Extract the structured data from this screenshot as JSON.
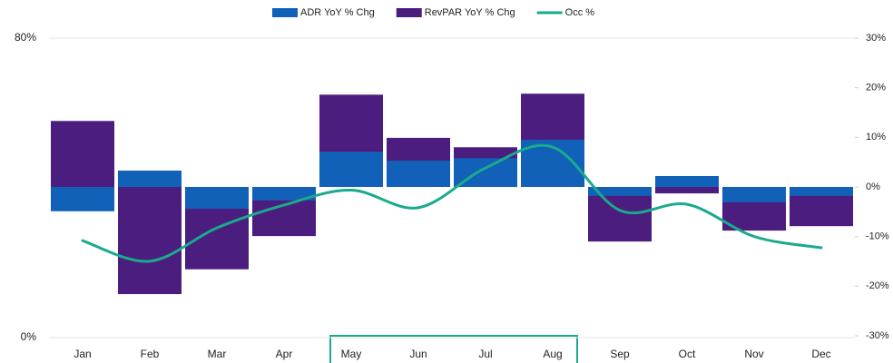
{
  "chart_data": {
    "type": "combo",
    "categories": [
      "Jan",
      "Feb",
      "Mar",
      "Apr",
      "May",
      "Jun",
      "Jul",
      "Aug",
      "Sep",
      "Oct",
      "Nov",
      "Dec"
    ],
    "series": [
      {
        "name": "ADR YoY % Chg",
        "type": "bar",
        "axis": "y2",
        "color": "#1261b8",
        "values": [
          -4.9,
          3.3,
          -4.4,
          -2.7,
          7.1,
          5.3,
          5.8,
          9.5,
          -1.8,
          2.2,
          -3.1,
          -1.8
        ]
      },
      {
        "name": "RevPAR YoY % Chg",
        "type": "bar",
        "axis": "y2",
        "color": "#4b1d7e",
        "values": [
          13.3,
          -21.6,
          -16.6,
          -9.9,
          18.6,
          9.9,
          8.0,
          18.8,
          -11.0,
          -1.3,
          -8.8,
          -7.9
        ]
      },
      {
        "name": "Occ %",
        "type": "line",
        "color": "#1aaa8c",
        "values": [
          25.9,
          20.4,
          29.3,
          35.4,
          39.4,
          34.7,
          45.3,
          50.9,
          34.0,
          35.6,
          27.0,
          24.0
        ]
      }
    ],
    "ylim": [
      0,
      80
    ],
    "yticks": [
      {
        "value": 0,
        "label": "0%"
      },
      {
        "value": 80,
        "label": "80%"
      }
    ],
    "y2lim": [
      -30,
      30
    ],
    "y2ticks": [
      {
        "value": -30,
        "label": "-30%"
      },
      {
        "value": -20,
        "label": "-20%"
      },
      {
        "value": -10,
        "label": "-10%"
      },
      {
        "value": 0,
        "label": "0%"
      },
      {
        "value": 10,
        "label": "10%"
      },
      {
        "value": 20,
        "label": "20%"
      },
      {
        "value": 30,
        "label": "30%"
      }
    ],
    "grid": true,
    "legend": "top"
  }
}
